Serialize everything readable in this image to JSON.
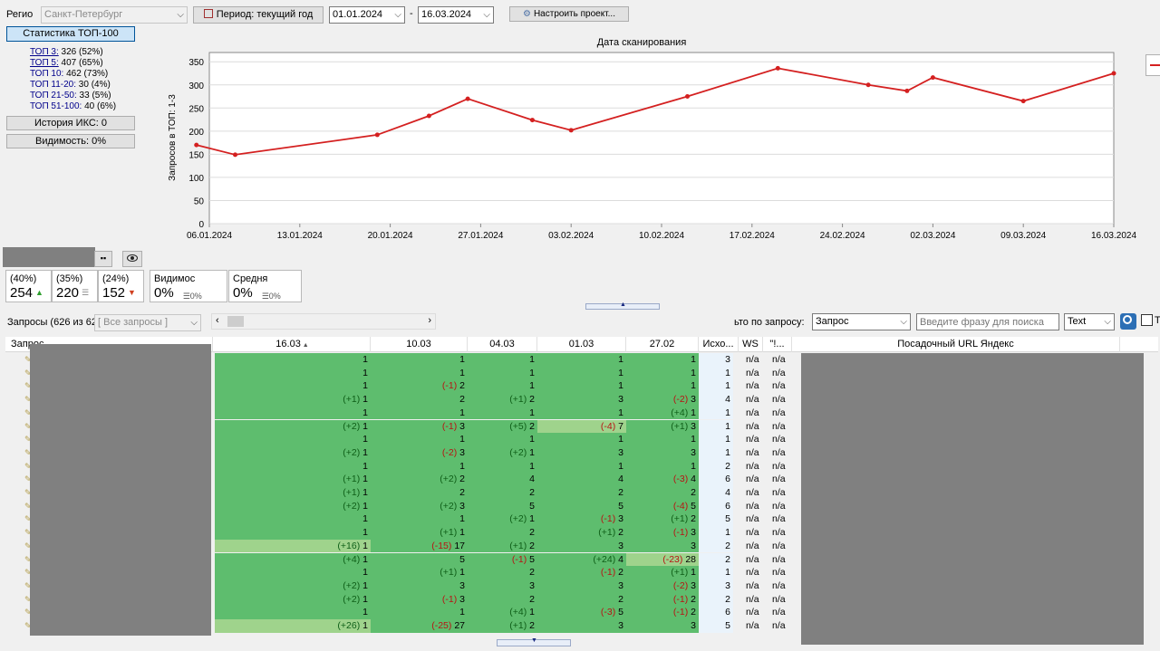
{
  "toolbar": {
    "region_label": "Регио",
    "region_value": "Санкт-Петербург",
    "period_button": "Период: текущий год",
    "date_from": "01.01.2024",
    "date_sep": "-",
    "date_to": "16.03.2024",
    "configure_button": "Настроить проект..."
  },
  "left_panel": {
    "top100_button": "Статистика ТОП-100",
    "stats": [
      {
        "label": "ТОП 3:",
        "value": "326 (52%)"
      },
      {
        "label": "ТОП 5:",
        "value": "407 (65%)"
      },
      {
        "label": "ТОП 10:",
        "value": "462 (73%)"
      },
      {
        "label": "ТОП 11-20:",
        "value": "30 (4%)"
      },
      {
        "label": "ТОП 21-50:",
        "value": "33 (5%)"
      },
      {
        "label": "ТОП 51-100:",
        "value": "40 (6%)"
      }
    ],
    "iks_button": "История ИКС: 0",
    "visibility_button": "Видимость: 0%"
  },
  "chart_data": {
    "type": "line",
    "title": "Дата сканирования",
    "ylabel": "Запросов в ТОП: 1-3",
    "ylim": [
      0,
      370
    ],
    "yticks": [
      0,
      50,
      100,
      150,
      200,
      250,
      300,
      350
    ],
    "xticks": [
      "06.01.2024",
      "13.01.2024",
      "20.01.2024",
      "27.01.2024",
      "03.02.2024",
      "10.02.2024",
      "17.02.2024",
      "24.02.2024",
      "02.03.2024",
      "09.03.2024",
      "16.03.2024"
    ],
    "x_start": "06.01.2024",
    "x_end": "16.03.2024",
    "points": [
      {
        "date": "05.01.2024",
        "y": 170
      },
      {
        "date": "08.01.2024",
        "y": 149
      },
      {
        "date": "19.01.2024",
        "y": 192
      },
      {
        "date": "23.01.2024",
        "y": 233
      },
      {
        "date": "26.01.2024",
        "y": 270
      },
      {
        "date": "31.01.2024",
        "y": 224
      },
      {
        "date": "03.02.2024",
        "y": 202
      },
      {
        "date": "12.02.2024",
        "y": 275
      },
      {
        "date": "19.02.2024",
        "y": 336
      },
      {
        "date": "26.02.2024",
        "y": 300
      },
      {
        "date": "29.02.2024",
        "y": 287
      },
      {
        "date": "02.03.2024",
        "y": 316
      },
      {
        "date": "09.03.2024",
        "y": 265
      },
      {
        "date": "16.03.2024",
        "y": 325
      }
    ],
    "color": "#d42020"
  },
  "summary_cards": [
    {
      "pct": "(40%)",
      "value": "254",
      "trend": "up"
    },
    {
      "pct": "(35%)",
      "value": "220",
      "trend": "equal"
    },
    {
      "pct": "(24%)",
      "value": "152",
      "trend": "down"
    }
  ],
  "metric_cards": [
    {
      "label": "Видимос",
      "value": "0%",
      "sub": "0%"
    },
    {
      "label": "Средня",
      "value": "0%",
      "sub": "0%"
    }
  ],
  "filter_bar": {
    "queries_label": "Запросы (626 из 62",
    "queries_filter": "[ Все запросы ]",
    "search_by_label": "ьто по запросу:",
    "search_by_value": "Запрос",
    "search_placeholder": "Введите фразу для поиска",
    "mode_value": "Text",
    "checkbox_label": "Т"
  },
  "grid": {
    "headers": [
      "Запрос",
      "16.03",
      "10.03",
      "04.03",
      "01.03",
      "27.02",
      "Исхо...",
      "WS",
      "\"!...",
      "Посадочный URL Яндекс"
    ],
    "rows": [
      [
        "",
        "1",
        "",
        "1",
        "",
        "1",
        "",
        "1",
        "",
        "1",
        "3"
      ],
      [
        "",
        "1",
        "",
        "1",
        "",
        "1",
        "",
        "1",
        "",
        "1",
        "1"
      ],
      [
        "",
        "1",
        "(-1)",
        "2",
        "",
        "1",
        "",
        "1",
        "",
        "1",
        "1"
      ],
      [
        "(+1)",
        "1",
        "",
        "2",
        "(+1)",
        "2",
        "",
        "3",
        "(-2)",
        "3",
        "4"
      ],
      [
        "",
        "1",
        "",
        "1",
        "",
        "1",
        "",
        "1",
        "(+4)",
        "1",
        "1"
      ],
      [
        "(+2)",
        "1",
        "(-1)",
        "3",
        "(+5)",
        "2",
        "(-4)",
        "7",
        "(+1)",
        "3",
        "1"
      ],
      [
        "",
        "1",
        "",
        "1",
        "",
        "1",
        "",
        "1",
        "",
        "1",
        "1"
      ],
      [
        "(+2)",
        "1",
        "(-2)",
        "3",
        "(+2)",
        "1",
        "",
        "3",
        "",
        "3",
        "1"
      ],
      [
        "",
        "1",
        "",
        "1",
        "",
        "1",
        "",
        "1",
        "",
        "1",
        "2"
      ],
      [
        "(+1)",
        "1",
        "(+2)",
        "2",
        "",
        "4",
        "",
        "4",
        "(-3)",
        "4",
        "6"
      ],
      [
        "(+1)",
        "1",
        "",
        "2",
        "",
        "2",
        "",
        "2",
        "",
        "2",
        "4"
      ],
      [
        "(+2)",
        "1",
        "(+2)",
        "3",
        "",
        "5",
        "",
        "5",
        "(-4)",
        "5",
        "6"
      ],
      [
        "",
        "1",
        "",
        "1",
        "(+2)",
        "1",
        "(-1)",
        "3",
        "(+1)",
        "2",
        "5"
      ],
      [
        "",
        "1",
        "(+1)",
        "1",
        "",
        "2",
        "(+1)",
        "2",
        "(-1)",
        "3",
        "1"
      ],
      [
        "(+16)",
        "1",
        "(-15)",
        "17",
        "(+1)",
        "2",
        "",
        "3",
        "",
        "3",
        "2"
      ],
      [
        "(+4)",
        "1",
        "",
        "5",
        "(-1)",
        "5",
        "(+24)",
        "4",
        "(-23)",
        "28",
        "2"
      ],
      [
        "",
        "1",
        "(+1)",
        "1",
        "",
        "2",
        "(-1)",
        "2",
        "(+1)",
        "1",
        "1"
      ],
      [
        "(+2)",
        "1",
        "",
        "3",
        "",
        "3",
        "",
        "3",
        "(-2)",
        "3",
        "3"
      ],
      [
        "(+2)",
        "1",
        "(-1)",
        "3",
        "",
        "2",
        "",
        "2",
        "(-1)",
        "2",
        "2"
      ],
      [
        "",
        "1",
        "",
        "1",
        "(+4)",
        "1",
        "(-3)",
        "5",
        "(-1)",
        "2",
        "6"
      ],
      [
        "(+26)",
        "1",
        "(-25)",
        "27",
        "(+1)",
        "2",
        "",
        "3",
        "",
        "3",
        "5"
      ]
    ],
    "highlights": [
      {
        "row": 5,
        "col": 4
      },
      {
        "row": 14,
        "col": 1
      },
      {
        "row": 15,
        "col": 5
      },
      {
        "row": 20,
        "col": 1
      }
    ],
    "na": "n/a"
  }
}
